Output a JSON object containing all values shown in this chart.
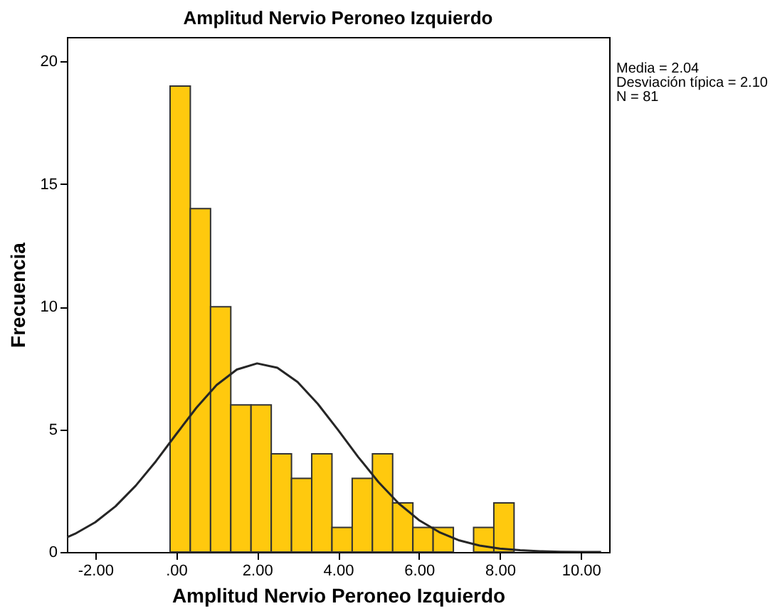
{
  "chart_data": {
    "type": "histogram",
    "title": "Amplitud Nervio Peroneo Izquierdo",
    "xlabel": "Amplitud Nervio Peroneo Izquierdo",
    "ylabel": "Frecuencia",
    "annotations": [
      "Media = 2.04",
      "Desviación típica = 2.10",
      "N = 81"
    ],
    "series": [
      {
        "type": "histogram",
        "color": "#ffc90e",
        "bins": [
          -0.15,
          0.35,
          0.85,
          1.35,
          1.85,
          2.35,
          2.85,
          3.35,
          3.85,
          4.35,
          4.85,
          5.35,
          5.85,
          6.35,
          6.85,
          7.35,
          7.85,
          8.35
        ],
        "values": [
          19,
          14,
          10,
          6,
          6,
          4,
          3,
          4,
          1,
          3,
          4,
          2,
          1,
          1,
          0,
          1,
          2
        ]
      },
      {
        "type": "line",
        "color": "#262626",
        "x": [
          -2.7,
          -2.5,
          -2,
          -1.5,
          -1,
          -0.5,
          0,
          0.5,
          1,
          1.5,
          2,
          2.5,
          3,
          3.5,
          4,
          4.5,
          5,
          5.5,
          6,
          6.5,
          7,
          7.5,
          8,
          8.5,
          9,
          9.5,
          10,
          10.5
        ],
        "values": [
          0.6,
          0.74,
          1.21,
          1.86,
          2.7,
          3.7,
          4.8,
          5.88,
          6.81,
          7.44,
          7.69,
          7.51,
          6.93,
          6.04,
          4.98,
          3.87,
          2.85,
          1.98,
          1.3,
          0.81,
          0.47,
          0.26,
          0.14,
          0.07,
          0.03,
          0.01,
          0,
          0
        ]
      }
    ],
    "xlim": [
      -2.7,
      10.7
    ],
    "ylim": [
      0,
      21
    ],
    "xticks": [
      {
        "value": -2,
        "label": "-2.00"
      },
      {
        "value": 0,
        "label": ".00"
      },
      {
        "value": 2,
        "label": "2.00"
      },
      {
        "value": 4,
        "label": "4.00"
      },
      {
        "value": 6,
        "label": "6.00"
      },
      {
        "value": 8,
        "label": "8.00"
      },
      {
        "value": 10,
        "label": "10.00"
      }
    ],
    "yticks": [
      0,
      5,
      10,
      15,
      20
    ],
    "grid": false
  }
}
